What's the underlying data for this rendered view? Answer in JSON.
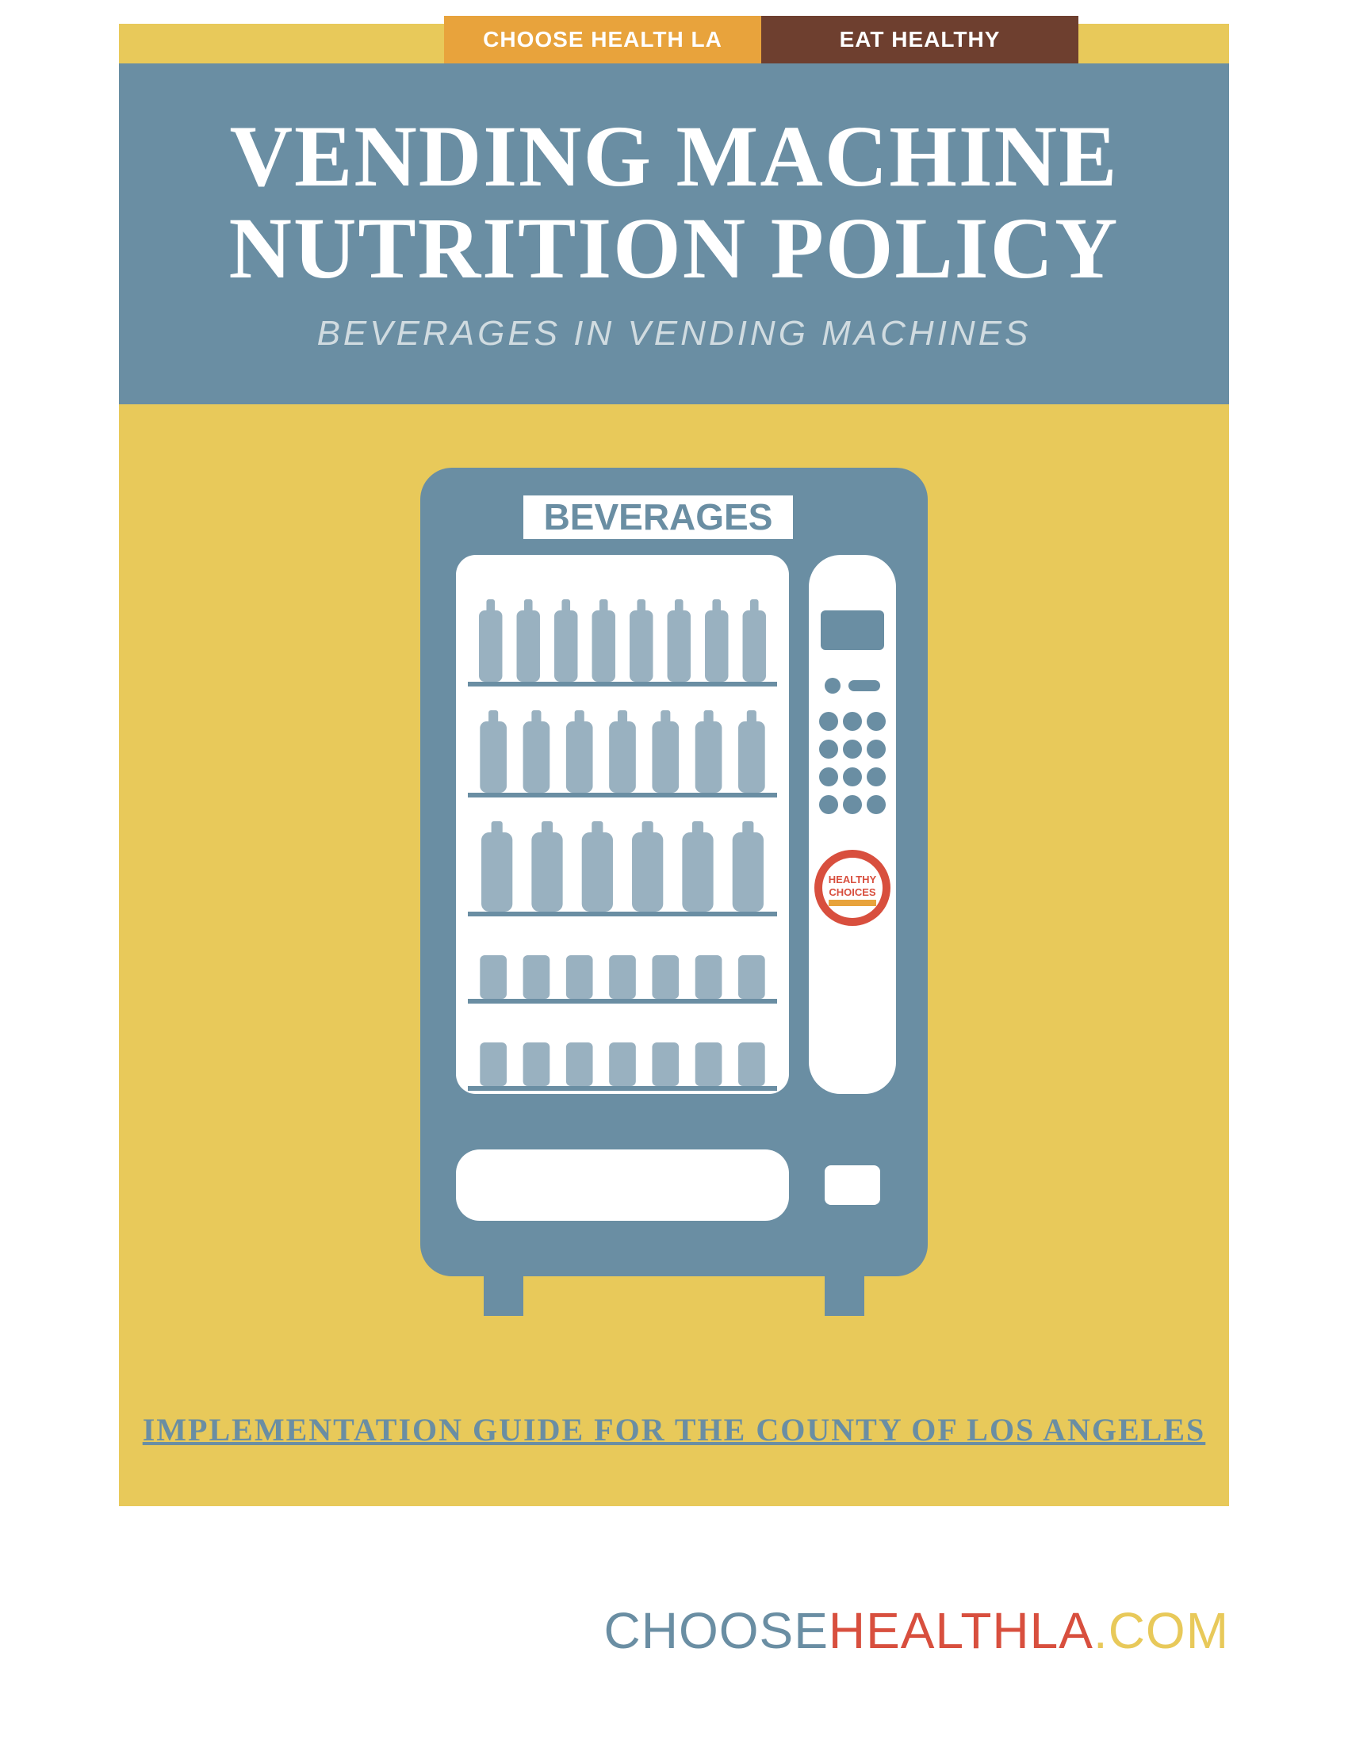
{
  "tabs": {
    "left": {
      "label": "CHOOSE HEALTH LA",
      "bg": "#e8a33c"
    },
    "right": {
      "label": "EAT HEALTHY",
      "bg": "#6e3f2f"
    }
  },
  "header": {
    "title_line1": "VENDING MACHINE",
    "title_line2": "NUTRITION POLICY",
    "subtitle": "BEVERAGES IN VENDING MACHINES",
    "band_color": "#6a8ea3",
    "title_color": "#ffffff",
    "subtitle_color": "#d0dbe0"
  },
  "body": {
    "bg_color": "#e8c95a"
  },
  "vending": {
    "label": "BEVERAGES",
    "body_color": "#6a8ea3",
    "panel_color": "#ffffff",
    "item_color": "#99b1c0",
    "shelf_color": "#6a8ea3",
    "keypad_button_color": "#6a8ea3",
    "rows": [
      {
        "type": "bottle",
        "count": 8,
        "height": 90
      },
      {
        "type": "bottle",
        "count": 7,
        "height": 90
      },
      {
        "type": "bottle",
        "count": 6,
        "height": 100
      },
      {
        "type": "can",
        "count": 7,
        "height": 55
      },
      {
        "type": "can",
        "count": 7,
        "height": 55
      }
    ],
    "badge": {
      "ring_color": "#d84f3e",
      "inner_bg": "#ffffff",
      "text1": "HEALTHY",
      "text2": "CHOICES"
    }
  },
  "footer": {
    "text": "IMPLEMENTATION GUIDE FOR THE COUNTY OF LOS ANGELES",
    "color": "#6a8ea3"
  },
  "url": {
    "part1": "CHOOSE",
    "part2": "HEALTHLA",
    "part3": ".COM",
    "color1": "#6a8ea3",
    "color2": "#d84f3e",
    "color3": "#e8c95a"
  }
}
